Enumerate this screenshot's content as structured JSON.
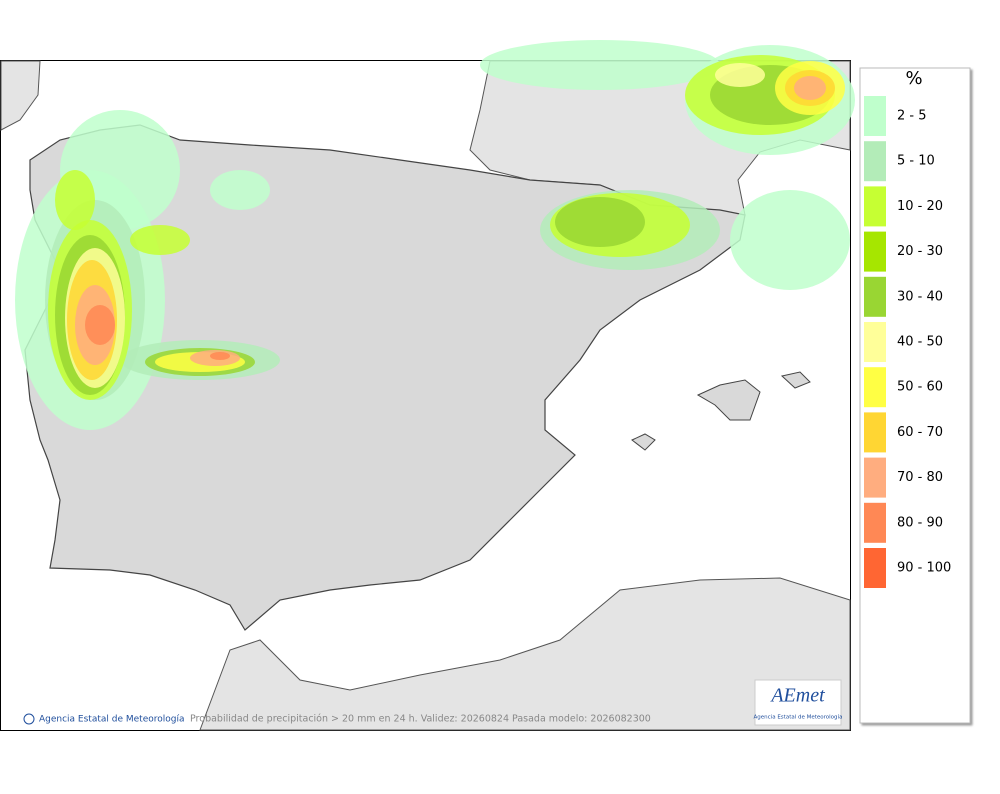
{
  "legend": {
    "title": "%",
    "items": [
      {
        "label": "2 - 5",
        "color": "#bfffcc"
      },
      {
        "label": "5 - 10",
        "color": "#b3ecb8"
      },
      {
        "label": "10 - 20",
        "color": "#c6ff33"
      },
      {
        "label": "20 - 30",
        "color": "#a6e600"
      },
      {
        "label": "30 - 40",
        "color": "#99d633"
      },
      {
        "label": "40 - 50",
        "color": "#ffff99"
      },
      {
        "label": "50 - 60",
        "color": "#ffff44"
      },
      {
        "label": "60 - 70",
        "color": "#ffd633"
      },
      {
        "label": "70 - 80",
        "color": "#ffad7f"
      },
      {
        "label": "80 - 90",
        "color": "#ff8855"
      },
      {
        "label": "90 - 100",
        "color": "#ff6633"
      }
    ]
  },
  "footer": {
    "credit": "Agencia Estatal de Meteorología",
    "caption": "Probabilidad de precipitación > 20 mm en 24 h. Validez: 20260824 Pasada modelo: 2026082300"
  },
  "logo": {
    "name": "AEmet",
    "subtitle": "Agencia Estatal de Meteorología"
  }
}
